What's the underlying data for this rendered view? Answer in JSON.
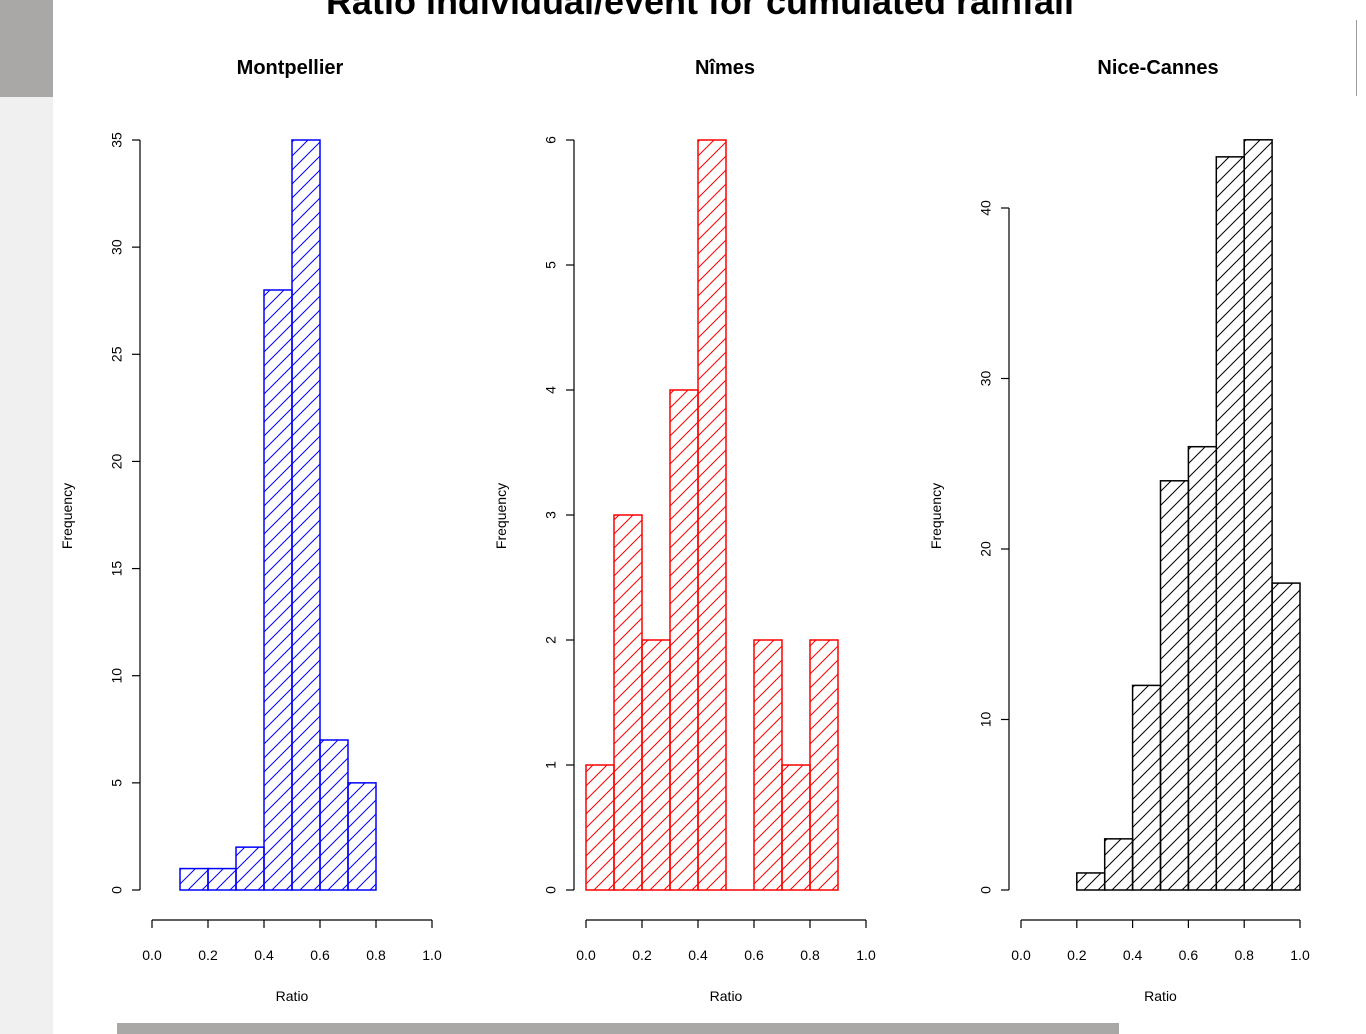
{
  "main_title": "Ratio individual/event for cumulated rainfall",
  "chart_data": [
    {
      "type": "bar",
      "title": "Montpellier",
      "xlabel": "Ratio",
      "ylabel": "Frequency",
      "color": "#0000ff",
      "bins": [
        [
          0.1,
          0.2
        ],
        [
          0.2,
          0.3
        ],
        [
          0.3,
          0.4
        ],
        [
          0.4,
          0.5
        ],
        [
          0.5,
          0.6
        ],
        [
          0.6,
          0.7
        ],
        [
          0.7,
          0.8
        ]
      ],
      "values": [
        1,
        1,
        2,
        28,
        35,
        7,
        5
      ],
      "xlim": [
        0,
        1
      ],
      "ylim": [
        0,
        35
      ],
      "xticks": [
        "0.0",
        "0.2",
        "0.4",
        "0.6",
        "0.8",
        "1.0"
      ],
      "yticks": [
        "0",
        "5",
        "10",
        "15",
        "20",
        "25",
        "30",
        "35"
      ]
    },
    {
      "type": "bar",
      "title": "Nîmes",
      "xlabel": "Ratio",
      "ylabel": "Frequency",
      "color": "#ff0000",
      "bins": [
        [
          0.0,
          0.1
        ],
        [
          0.1,
          0.2
        ],
        [
          0.2,
          0.3
        ],
        [
          0.3,
          0.4
        ],
        [
          0.4,
          0.5
        ],
        [
          0.5,
          0.6
        ],
        [
          0.6,
          0.7
        ],
        [
          0.7,
          0.8
        ],
        [
          0.8,
          0.9
        ]
      ],
      "values": [
        1,
        3,
        2,
        4,
        6,
        0,
        2,
        1,
        2
      ],
      "xlim": [
        0,
        1
      ],
      "ylim": [
        0,
        6
      ],
      "xticks": [
        "0.0",
        "0.2",
        "0.4",
        "0.6",
        "0.8",
        "1.0"
      ],
      "yticks": [
        "0",
        "1",
        "2",
        "3",
        "4",
        "5",
        "6"
      ]
    },
    {
      "type": "bar",
      "title": "Nice-Cannes",
      "xlabel": "Ratio",
      "ylabel": "Frequency",
      "color": "#000000",
      "bins": [
        [
          0.2,
          0.3
        ],
        [
          0.3,
          0.4
        ],
        [
          0.4,
          0.5
        ],
        [
          0.5,
          0.6
        ],
        [
          0.6,
          0.7
        ],
        [
          0.7,
          0.8
        ],
        [
          0.8,
          0.9
        ],
        [
          0.9,
          1.0
        ]
      ],
      "values": [
        1,
        3,
        12,
        24,
        26,
        43,
        44,
        18
      ],
      "xlim": [
        0,
        1
      ],
      "ylim": [
        0,
        40
      ],
      "xticks": [
        "0.0",
        "0.2",
        "0.4",
        "0.6",
        "0.8",
        "1.0"
      ],
      "yticks": [
        "0",
        "10",
        "20",
        "30",
        "40"
      ]
    }
  ]
}
